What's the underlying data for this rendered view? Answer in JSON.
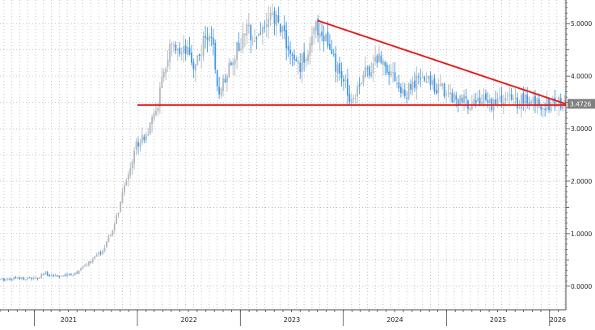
{
  "chart_data": {
    "type": "candlestick",
    "y_tick_labels": [
      "0.0000",
      "1.0000",
      "2.0000",
      "3.0000",
      "4.0000",
      "5.0000"
    ],
    "y_ticks": [
      0,
      1,
      2,
      3,
      4,
      5
    ],
    "ylim": [
      -0.45,
      5.45
    ],
    "x_tick_labels": [
      "2021",
      "2022",
      "2023",
      "2024",
      "2025",
      "2026"
    ],
    "x_year_starts": [
      "2021-01-01",
      "2022-01-01",
      "2023-01-01",
      "2024-01-01",
      "2025-01-01",
      "2026-01-01"
    ],
    "xlim": [
      "2020-09-01",
      "2026-02-28"
    ],
    "grid": true,
    "y_axis_side": "right",
    "last_value_label": "3.4726",
    "last_value": 3.4726,
    "support_line": {
      "value": 3.45,
      "from": "2022-01-01",
      "to": "2026-02-28"
    },
    "resistance_line": {
      "from": {
        "date": "2023-10-01",
        "value": 5.06
      },
      "to": {
        "date": "2026-02-28",
        "value": 3.47
      }
    },
    "price_path": [
      [
        "2020-09-01",
        0.12
      ],
      [
        "2020-11-01",
        0.16
      ],
      [
        "2021-01-15",
        0.14
      ],
      [
        "2021-02-01",
        0.24
      ],
      [
        "2021-03-01",
        0.21
      ],
      [
        "2021-04-15",
        0.19
      ],
      [
        "2021-06-01",
        0.26
      ],
      [
        "2021-07-01",
        0.4
      ],
      [
        "2021-08-01",
        0.54
      ],
      [
        "2021-09-01",
        0.68
      ],
      [
        "2021-10-01",
        1.0
      ],
      [
        "2021-11-01",
        1.55
      ],
      [
        "2021-12-01",
        2.2
      ],
      [
        "2022-01-01",
        2.75
      ],
      [
        "2022-02-15",
        3.0
      ],
      [
        "2022-03-15",
        3.5
      ],
      [
        "2022-04-15",
        4.3
      ],
      [
        "2022-05-01",
        4.55
      ],
      [
        "2022-06-01",
        4.3
      ],
      [
        "2022-06-20",
        4.45
      ],
      [
        "2022-07-20",
        4.2
      ],
      [
        "2022-08-15",
        4.5
      ],
      [
        "2022-09-20",
        4.9
      ],
      [
        "2022-10-10",
        3.65
      ],
      [
        "2022-11-01",
        3.9
      ],
      [
        "2022-12-01",
        4.35
      ],
      [
        "2023-01-01",
        4.6
      ],
      [
        "2023-02-01",
        4.9
      ],
      [
        "2023-03-01",
        4.75
      ],
      [
        "2023-04-01",
        5.0
      ],
      [
        "2023-05-01",
        5.08
      ],
      [
        "2023-06-01",
        4.9
      ],
      [
        "2023-07-01",
        4.3
      ],
      [
        "2023-08-01",
        4.2
      ],
      [
        "2023-09-01",
        4.55
      ],
      [
        "2023-10-01",
        4.95
      ],
      [
        "2023-11-01",
        4.7
      ],
      [
        "2023-12-01",
        4.2
      ],
      [
        "2024-01-01",
        3.9
      ],
      [
        "2024-02-01",
        3.55
      ],
      [
        "2024-03-01",
        3.95
      ],
      [
        "2024-04-01",
        4.15
      ],
      [
        "2024-05-01",
        4.35
      ],
      [
        "2024-06-01",
        4.25
      ],
      [
        "2024-07-01",
        4.0
      ],
      [
        "2024-08-01",
        3.6
      ],
      [
        "2024-09-01",
        3.8
      ],
      [
        "2024-10-01",
        3.95
      ],
      [
        "2024-11-01",
        3.9
      ],
      [
        "2024-12-01",
        3.8
      ],
      [
        "2025-01-01",
        3.7
      ],
      [
        "2025-02-01",
        3.6
      ],
      [
        "2025-03-01",
        3.5
      ],
      [
        "2025-04-01",
        3.52
      ],
      [
        "2025-05-01",
        3.55
      ],
      [
        "2025-06-01",
        3.48
      ],
      [
        "2025-07-01",
        3.52
      ],
      [
        "2025-08-01",
        3.56
      ],
      [
        "2025-09-01",
        3.5
      ],
      [
        "2025-10-01",
        3.54
      ],
      [
        "2025-11-01",
        3.5
      ],
      [
        "2025-12-01",
        3.49
      ],
      [
        "2026-01-01",
        3.48
      ],
      [
        "2026-02-28",
        3.47
      ]
    ],
    "colors": {
      "up": "#b0b6bd",
      "down": "#3f97e6",
      "trend_lines": "#e81b1b",
      "grid": "#b4b4b4",
      "label_box": "#808080"
    }
  }
}
